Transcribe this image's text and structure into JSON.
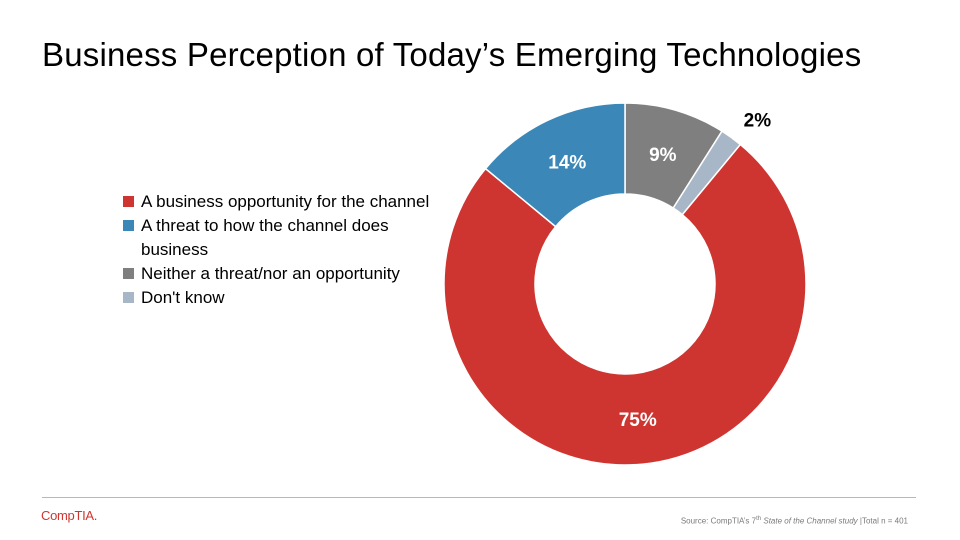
{
  "title": "Business Perception of Today’s Emerging Technologies",
  "chart_data": {
    "type": "pie",
    "subtype": "donut",
    "categories": [
      "A business opportunity for the channel",
      "A threat to how the channel does business",
      "Neither a threat/nor an opportunity",
      "Don't know"
    ],
    "values": [
      75,
      14,
      9,
      2
    ],
    "labels": [
      "75%",
      "14%",
      "9%",
      "2%"
    ],
    "colors": [
      "#cf3530",
      "#3b87b8",
      "#7f7f7f",
      "#a8b7c7"
    ],
    "legend_position": "left"
  },
  "footer": {
    "logo": "CompTIA.",
    "source_prefix": "Source: CompTIA’s 7",
    "source_sup": "th",
    "source_italic": "State of the Channel study",
    "source_suffix": " |Total n = 401"
  }
}
